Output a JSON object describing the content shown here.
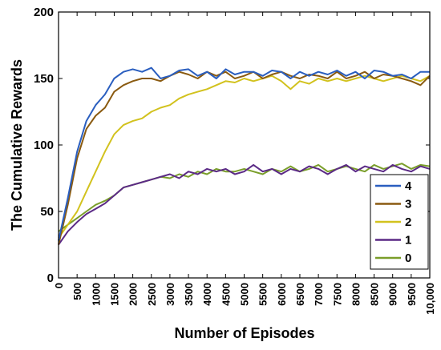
{
  "chart_data": {
    "type": "line",
    "title": "",
    "xlabel": "Number of Episodes",
    "ylabel": "The Cumulative Rewards",
    "xlim": [
      0,
      10000
    ],
    "ylim": [
      0,
      200
    ],
    "x_ticks": [
      "0",
      "500",
      "1000",
      "1500",
      "2000",
      "2500",
      "3000",
      "3500",
      "4000",
      "4500",
      "5000",
      "5500",
      "6000",
      "6500",
      "7000",
      "7500",
      "8000",
      "8500",
      "9000",
      "9500",
      "10,000"
    ],
    "y_ticks": [
      "0",
      "50",
      "100",
      "150",
      "200"
    ],
    "grid": false,
    "legend_position": "right",
    "x": [
      0,
      250,
      500,
      750,
      1000,
      1250,
      1500,
      1750,
      2000,
      2250,
      2500,
      2750,
      3000,
      3250,
      3500,
      3750,
      4000,
      4250,
      4500,
      4750,
      5000,
      5250,
      5500,
      5750,
      6000,
      6250,
      6500,
      6750,
      7000,
      7250,
      7500,
      7750,
      8000,
      8250,
      8500,
      8750,
      9000,
      9250,
      9500,
      9750,
      10000
    ],
    "series": [
      {
        "name": "4",
        "color": "#2a5ebf",
        "values": [
          28,
          60,
          95,
          118,
          130,
          138,
          150,
          155,
          157,
          155,
          158,
          150,
          152,
          156,
          157,
          152,
          155,
          150,
          157,
          153,
          155,
          155,
          152,
          156,
          155,
          150,
          155,
          152,
          155,
          153,
          156,
          152,
          155,
          150,
          156,
          155,
          152,
          153,
          150,
          155,
          155
        ]
      },
      {
        "name": "3",
        "color": "#8a5a10",
        "values": [
          25,
          55,
          90,
          112,
          122,
          128,
          140,
          145,
          148,
          150,
          150,
          148,
          152,
          155,
          153,
          150,
          155,
          152,
          155,
          150,
          152,
          155,
          150,
          153,
          155,
          152,
          150,
          153,
          152,
          150,
          155,
          150,
          152,
          155,
          150,
          153,
          152,
          150,
          148,
          145,
          152
        ]
      },
      {
        "name": "2",
        "color": "#d2c21e",
        "values": [
          30,
          40,
          50,
          65,
          80,
          95,
          108,
          115,
          118,
          120,
          125,
          128,
          130,
          135,
          138,
          140,
          142,
          145,
          148,
          147,
          150,
          148,
          150,
          152,
          148,
          142,
          148,
          146,
          150,
          148,
          150,
          148,
          150,
          152,
          150,
          148,
          150,
          152,
          150,
          148,
          152
        ]
      },
      {
        "name": "1",
        "color": "#5b2a86",
        "values": [
          25,
          35,
          42,
          48,
          52,
          56,
          62,
          68,
          70,
          72,
          74,
          76,
          78,
          75,
          80,
          78,
          82,
          80,
          82,
          78,
          80,
          85,
          80,
          82,
          78,
          82,
          80,
          84,
          82,
          78,
          82,
          85,
          80,
          84,
          82,
          80,
          85,
          82,
          80,
          84,
          82
        ]
      },
      {
        "name": "0",
        "color": "#7a9e2a",
        "values": [
          35,
          40,
          45,
          50,
          55,
          58,
          62,
          68,
          70,
          72,
          74,
          76,
          75,
          78,
          76,
          80,
          78,
          82,
          80,
          80,
          82,
          80,
          78,
          82,
          80,
          84,
          80,
          82,
          85,
          80,
          82,
          84,
          82,
          80,
          85,
          82,
          84,
          86,
          82,
          85,
          84
        ]
      }
    ]
  }
}
